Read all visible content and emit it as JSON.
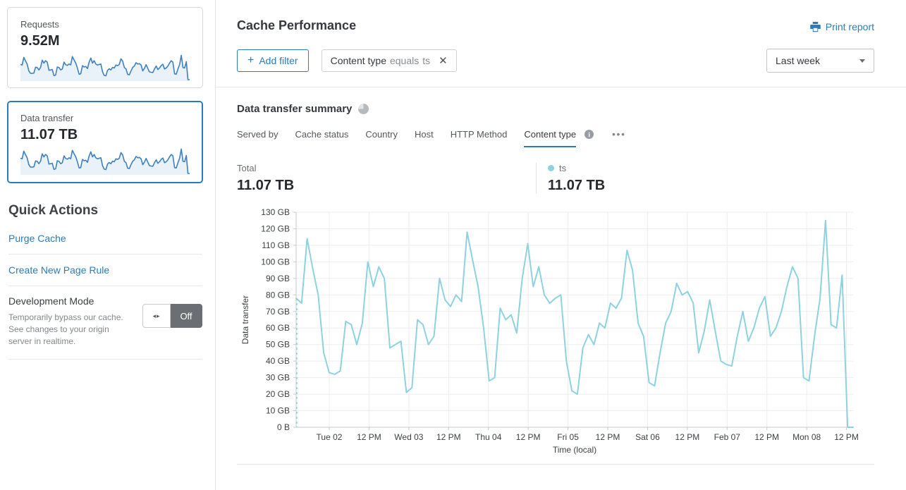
{
  "colors": {
    "accent_blue": "#2b7cb9",
    "series_blue": "#8ed2e0",
    "sparkline_stroke": "#3e81c1",
    "sparkline_fill": "#e9f1f9",
    "toggle_off_bg": "#6b6f74",
    "grid_line": "#ededee",
    "axis_line": "#c9c9c9"
  },
  "sidebar": {
    "cards": [
      {
        "label": "Requests",
        "value": "9.52M"
      },
      {
        "label": "Data transfer",
        "value": "11.07 TB",
        "selected": true
      }
    ],
    "quick_actions": {
      "title": "Quick Actions",
      "links": [
        "Purge Cache",
        "Create New Page Rule"
      ],
      "dev_mode": {
        "title": "Development Mode",
        "description": "Temporarily bypass our cache. See changes to your origin server in realtime.",
        "toggle_state": "Off"
      }
    }
  },
  "header": {
    "title": "Cache Performance",
    "print_label": "Print report",
    "add_filter_label": "Add filter",
    "plus_glyph": "+",
    "filter_chip": {
      "field": "Content type",
      "operator": "equals",
      "value": "ts",
      "close_glyph": "✕"
    },
    "time_range": "Last week"
  },
  "summary": {
    "title": "Data transfer summary",
    "tabs": [
      "Served by",
      "Cache status",
      "Country",
      "Host",
      "HTTP Method",
      "Content type"
    ],
    "active_tab": "Content type",
    "info_glyph": "i",
    "more_label": "•••",
    "total_label": "Total",
    "total_value": "11.07 TB",
    "legend": {
      "series": "ts",
      "value": "11.07 TB"
    }
  },
  "chart_data": {
    "type": "line",
    "ylabel": "Data transfer",
    "xlabel": "Time (local)",
    "ylim": [
      0,
      130
    ],
    "unit": "GB",
    "grid": true,
    "legend_position": "above-right",
    "line_color": "#8ed2e0",
    "start_marker": "dashed-drop-line",
    "y_tick_labels": [
      "0 B",
      "10 GB",
      "20 GB",
      "30 GB",
      "40 GB",
      "50 GB",
      "60 GB",
      "70 GB",
      "80 GB",
      "90 GB",
      "100 GB",
      "110 GB",
      "120 GB",
      "130 GB"
    ],
    "x_tick_labels": [
      "Tue 02",
      "12 PM",
      "Wed 03",
      "12 PM",
      "Thu 04",
      "12 PM",
      "Fri 05",
      "12 PM",
      "Sat 06",
      "12 PM",
      "Feb 07",
      "12 PM",
      "Mon 08",
      "12 PM"
    ],
    "series": [
      {
        "name": "ts",
        "total": "11.07 TB",
        "values": [
          78,
          75,
          114,
          96,
          80,
          45,
          33,
          32,
          34,
          64,
          62,
          50,
          63,
          100,
          85,
          97,
          90,
          48,
          50,
          52,
          21,
          24,
          65,
          62,
          50,
          55,
          90,
          77,
          73,
          80,
          76,
          118,
          101,
          85,
          60,
          28,
          30,
          72,
          65,
          68,
          57,
          90,
          111,
          85,
          97,
          80,
          75,
          78,
          80,
          40,
          22,
          20,
          48,
          56,
          50,
          63,
          60,
          75,
          72,
          78,
          107,
          95,
          63,
          55,
          27,
          25,
          45,
          63,
          70,
          87,
          80,
          82,
          75,
          45,
          58,
          77,
          58,
          40,
          38,
          37,
          55,
          70,
          52,
          60,
          72,
          79,
          55,
          60,
          70,
          85,
          97,
          90,
          30,
          28,
          55,
          78,
          125,
          62,
          60,
          92,
          0,
          0
        ]
      }
    ]
  }
}
